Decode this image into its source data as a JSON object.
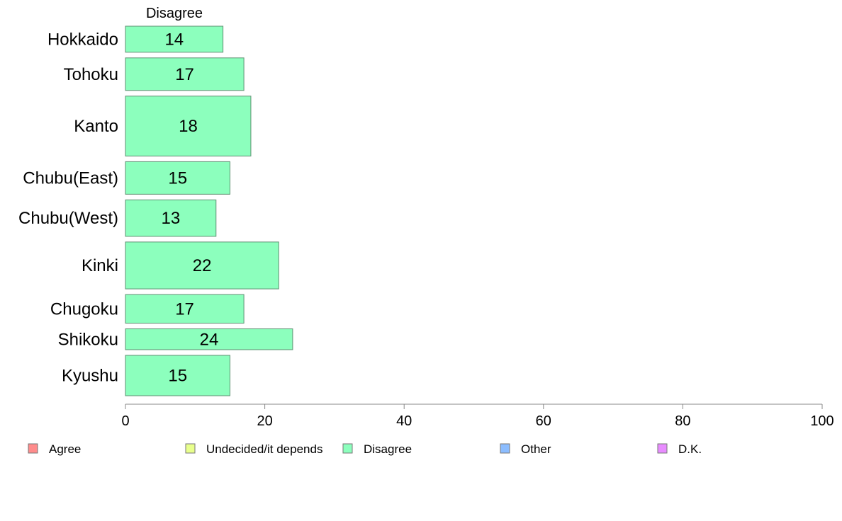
{
  "chart_data": {
    "type": "bar",
    "orientation": "horizontal",
    "header": "Disagree",
    "categories": [
      "Hokkaido",
      "Tohoku",
      "Kanto",
      "Chubu(East)",
      "Chubu(West)",
      "Kinki",
      "Chugoku",
      "Shikoku",
      "Kyushu"
    ],
    "relative_widths": [
      1.0,
      1.25,
      2.3,
      1.25,
      1.4,
      1.8,
      1.1,
      0.8,
      1.55
    ],
    "series": [
      {
        "name": "Disagree",
        "color": "#8cffbd",
        "values": [
          14,
          17,
          18,
          15,
          13,
          22,
          17,
          24,
          15
        ]
      }
    ],
    "xlim": [
      0,
      100
    ],
    "xticks": [
      0,
      20,
      40,
      60,
      80,
      100
    ],
    "grid": false,
    "legend": {
      "placement": "bottom",
      "entries": [
        {
          "label": "Agree",
          "color": "#ff8c8c"
        },
        {
          "label": "Undecided/it depends",
          "color": "#e8ff8c"
        },
        {
          "label": "Disagree",
          "color": "#8cffbd"
        },
        {
          "label": "Other",
          "color": "#8cbdff"
        },
        {
          "label": "D.K.",
          "color": "#e88cff"
        }
      ]
    }
  }
}
